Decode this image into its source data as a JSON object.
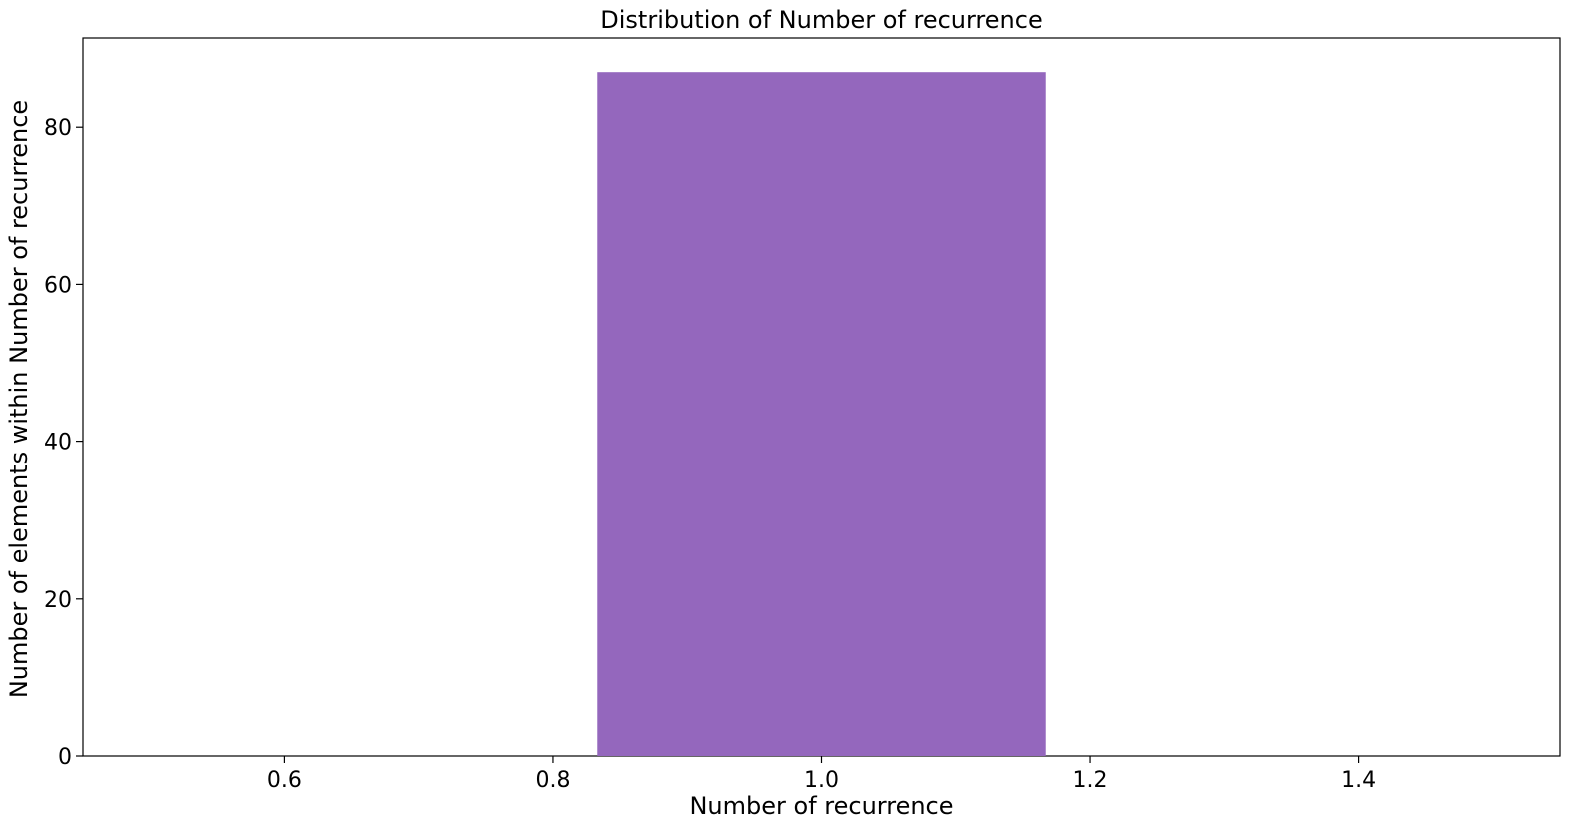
{
  "chart_data": {
    "type": "bar",
    "title": "Distribution of Number of recurrence",
    "xlabel": "Number of recurrence",
    "ylabel": "Number of elements within Number of recurrence",
    "bins": [
      {
        "x_start": 0.833,
        "x_end": 1.167,
        "value": 87
      }
    ],
    "xlim": [
      0.45,
      1.55
    ],
    "ylim": [
      0,
      91.35
    ],
    "x_ticks": [
      "0.6",
      "0.8",
      "1.0",
      "1.2",
      "1.4"
    ],
    "y_ticks": [
      "0",
      "20",
      "40",
      "60",
      "80"
    ],
    "grid": false,
    "legend": "none",
    "colors": {
      "bar": "#9467bd",
      "axes": "#000000"
    }
  }
}
